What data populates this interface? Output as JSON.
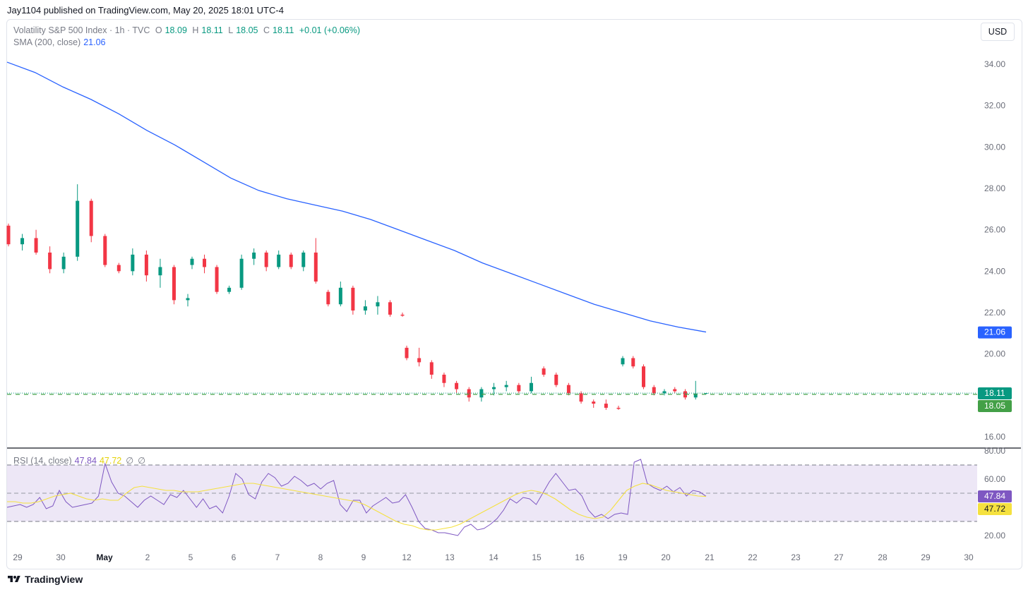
{
  "attribution": "Jay1104 published on TradingView.com, May 20, 2025 18:01 UTC-4",
  "legend": {
    "symbol": "Volatility S&P 500 Index · 1h · TVC",
    "open_label": "O",
    "open": "18.09",
    "high_label": "H",
    "high": "18.11",
    "low_label": "L",
    "low": "18.05",
    "close_label": "C",
    "close": "18.11",
    "change": "+0.01 (+0.06%)",
    "sma_label": "SMA (200, close)",
    "sma_value": "21.06",
    "rsi_label": "RSI (14, close)",
    "rsi_value": "47.84",
    "rsi_ma_value": "47.72",
    "na1": "∅",
    "na2": "∅"
  },
  "currency_button": "USD",
  "footer_brand": "TradingView",
  "colors": {
    "up": "#089981",
    "down": "#f23645",
    "sma": "#2962ff",
    "rsi": "#7e57c2",
    "rsi_ma": "#f5e13f",
    "last_close_label": "#089981",
    "low_label": "#43a047",
    "sma_label": "#2962ff",
    "rsi_band": "#ede7f6"
  },
  "chart_data": [
    {
      "type": "candlestick",
      "title": "Volatility S&P 500 Index · 1h · TVC",
      "ylim": [
        16,
        35
      ],
      "y_ticks": [
        "16.00",
        "20.00",
        "22.00",
        "24.00",
        "26.00",
        "28.00",
        "30.00",
        "32.00",
        "34.00"
      ],
      "x_ticks": [
        "29",
        "30",
        "May",
        "2",
        "5",
        "6",
        "7",
        "8",
        "9",
        "12",
        "13",
        "14",
        "15",
        "16",
        "19",
        "20",
        "21",
        "22",
        "23",
        "27",
        "28",
        "29",
        "30"
      ],
      "last_close": 18.11,
      "last_low": 18.05,
      "last_close_label": "18.11",
      "last_low_label": "18.05",
      "sma_label_value": "21.06",
      "sma": [
        34.1,
        33.6,
        32.9,
        32.3,
        31.6,
        30.8,
        30.1,
        29.3,
        28.5,
        27.9,
        27.5,
        27.2,
        26.9,
        26.5,
        26.0,
        25.5,
        25.0,
        24.4,
        23.9,
        23.4,
        22.9,
        22.4,
        22.0,
        21.6,
        21.3,
        21.06
      ],
      "ohlc": [
        [
          26.2,
          26.3,
          25.2,
          25.3
        ],
        [
          25.3,
          25.8,
          25.0,
          25.6
        ],
        [
          25.6,
          26.0,
          24.8,
          24.9
        ],
        [
          24.9,
          25.2,
          23.9,
          24.1
        ],
        [
          24.1,
          24.9,
          23.9,
          24.7
        ],
        [
          24.7,
          28.2,
          24.5,
          27.4
        ],
        [
          27.4,
          27.5,
          25.4,
          25.7
        ],
        [
          25.7,
          25.8,
          24.2,
          24.3
        ],
        [
          24.3,
          24.4,
          23.9,
          24.0
        ],
        [
          24.0,
          25.1,
          23.8,
          24.8
        ],
        [
          24.8,
          25.0,
          23.5,
          23.8
        ],
        [
          23.8,
          24.6,
          23.2,
          24.2
        ],
        [
          24.2,
          24.3,
          22.4,
          22.6
        ],
        [
          22.6,
          22.9,
          22.3,
          22.7
        ],
        [
          24.3,
          24.7,
          24.1,
          24.6
        ],
        [
          24.6,
          24.8,
          23.9,
          24.2
        ],
        [
          24.2,
          24.3,
          22.9,
          23.0
        ],
        [
          23.0,
          23.3,
          22.9,
          23.2
        ],
        [
          23.2,
          24.8,
          23.1,
          24.6
        ],
        [
          24.6,
          25.1,
          24.3,
          24.9
        ],
        [
          24.9,
          25.0,
          24.0,
          24.2
        ],
        [
          24.2,
          25.0,
          24.1,
          24.8
        ],
        [
          24.8,
          24.9,
          24.1,
          24.2
        ],
        [
          24.2,
          25.0,
          24.0,
          24.9
        ],
        [
          24.9,
          25.6,
          23.4,
          23.5
        ],
        [
          23.0,
          23.1,
          22.3,
          22.4
        ],
        [
          22.4,
          23.5,
          22.3,
          23.2
        ],
        [
          23.2,
          23.3,
          21.9,
          22.1
        ],
        [
          22.1,
          22.6,
          21.9,
          22.3
        ],
        [
          22.3,
          22.8,
          21.9,
          22.5
        ],
        [
          22.5,
          22.6,
          21.8,
          21.9
        ],
        [
          21.9,
          22.0,
          21.8,
          21.85
        ],
        [
          20.3,
          20.4,
          19.7,
          19.8
        ],
        [
          19.8,
          20.3,
          19.4,
          19.6
        ],
        [
          19.6,
          19.7,
          18.8,
          19.0
        ],
        [
          19.0,
          19.1,
          18.4,
          18.6
        ],
        [
          18.6,
          18.7,
          18.1,
          18.3
        ],
        [
          18.3,
          18.4,
          17.7,
          17.9
        ],
        [
          17.9,
          18.4,
          17.7,
          18.3
        ],
        [
          18.3,
          18.6,
          18.0,
          18.4
        ],
        [
          18.4,
          18.7,
          18.2,
          18.5
        ],
        [
          18.5,
          18.6,
          18.1,
          18.2
        ],
        [
          18.2,
          18.9,
          18.1,
          18.6
        ],
        [
          19.3,
          19.4,
          18.9,
          19.0
        ],
        [
          19.0,
          19.1,
          18.4,
          18.5
        ],
        [
          18.5,
          18.6,
          18.0,
          18.1
        ],
        [
          18.1,
          18.2,
          17.6,
          17.7
        ],
        [
          17.7,
          17.8,
          17.4,
          17.6
        ],
        [
          17.6,
          17.8,
          17.3,
          17.4
        ],
        [
          17.4,
          17.5,
          17.3,
          17.35
        ],
        [
          19.5,
          19.9,
          19.4,
          19.8
        ],
        [
          19.8,
          19.9,
          19.3,
          19.4
        ],
        [
          19.4,
          19.5,
          18.3,
          18.4
        ],
        [
          18.4,
          18.5,
          18.0,
          18.1
        ],
        [
          18.1,
          18.3,
          18.0,
          18.2
        ],
        [
          18.3,
          18.4,
          18.1,
          18.2
        ],
        [
          18.2,
          18.3,
          17.8,
          17.9
        ],
        [
          17.9,
          18.7,
          17.8,
          18.09
        ],
        [
          18.09,
          18.11,
          18.05,
          18.11
        ]
      ]
    },
    {
      "type": "line",
      "title": "RSI (14, close)",
      "ylim": [
        20,
        80
      ],
      "y_ticks": [
        "20.00",
        "60.00",
        "80.00"
      ],
      "bands": [
        30,
        70
      ],
      "middle": 50,
      "rsi_label": "47.84",
      "rsi_ma_label": "47.72",
      "series": [
        {
          "name": "RSI",
          "values": [
            40,
            41,
            42,
            40,
            42,
            47,
            39,
            41,
            52,
            44,
            40,
            41,
            42,
            43,
            48,
            71,
            58,
            50,
            48,
            44,
            40,
            45,
            48,
            45,
            42,
            49,
            47,
            52,
            46,
            40,
            46,
            39,
            41,
            36,
            48,
            64,
            60,
            49,
            46,
            58,
            64,
            61,
            55,
            57,
            62,
            59,
            55,
            57,
            53,
            57,
            59,
            42,
            37,
            45,
            45,
            36,
            41,
            44,
            47,
            43,
            44,
            49,
            40,
            30,
            25,
            24,
            22,
            22,
            21,
            20,
            26,
            28,
            24,
            25,
            28,
            32,
            38,
            46,
            43,
            47,
            46,
            42,
            50,
            58,
            64,
            58,
            52,
            53,
            48,
            38,
            33,
            35,
            32,
            35,
            36,
            35,
            72,
            74,
            57,
            54,
            52,
            55,
            51,
            54,
            48,
            52,
            51,
            47.84
          ]
        },
        {
          "name": "RSI MA",
          "values": [
            44,
            44,
            43,
            43,
            44,
            46,
            48,
            49,
            50,
            48,
            46,
            45,
            46,
            45,
            45,
            50,
            54,
            55,
            54,
            53,
            52,
            52,
            51,
            51,
            51,
            52,
            53,
            54,
            55,
            56,
            57,
            57,
            56,
            55,
            54,
            53,
            52,
            51,
            50,
            49,
            48,
            47,
            46,
            45,
            44,
            42,
            39,
            36,
            33,
            30,
            28,
            27,
            25,
            24,
            24,
            25,
            26,
            28,
            31,
            34,
            37,
            40,
            43,
            46,
            49,
            51,
            52,
            51,
            49,
            46,
            42,
            38,
            35,
            33,
            32,
            33,
            38,
            45,
            52,
            55,
            57,
            56,
            54,
            52,
            51,
            50,
            49,
            48,
            47.72
          ]
        }
      ]
    }
  ]
}
